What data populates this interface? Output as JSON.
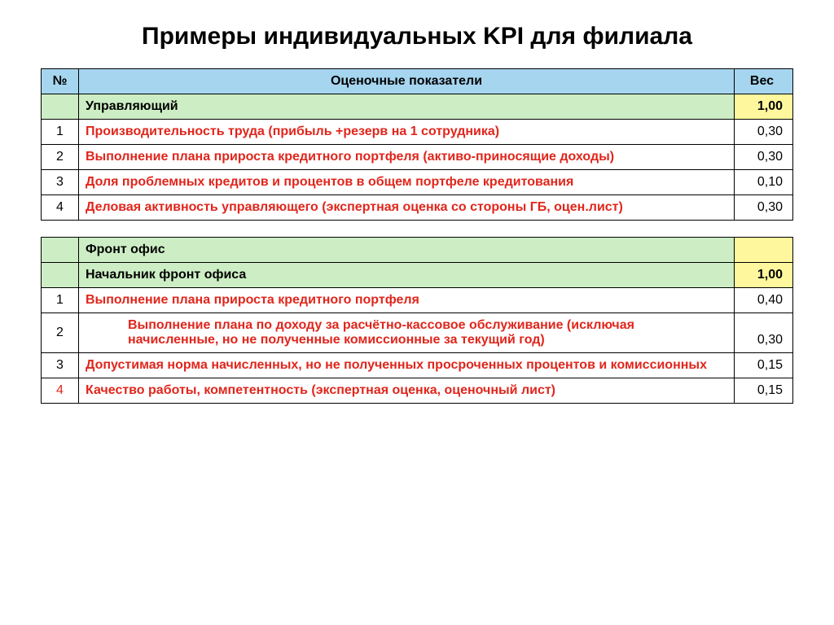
{
  "title": "Примеры индивидуальных KPI для филиала",
  "headers": {
    "num": "№",
    "indicators": "Оценочные показатели",
    "weight": "Вес"
  },
  "section1": {
    "label": "Управляющий",
    "total": "1,00",
    "rows": [
      {
        "n": "1",
        "text": "Производительность труда (прибыль +резерв на 1 сотрудника)",
        "w": "0,30"
      },
      {
        "n": "2",
        "text": "Выполнение плана прироста кредитного портфеля (активо-приносящие доходы)",
        "w": "0,30"
      },
      {
        "n": "3",
        "text": "Доля проблемных кредитов и  процентов в общем портфеле кредитования",
        "w": "0,10"
      },
      {
        "n": "4",
        "text": "Деловая активность управляющего (экспертная оценка со стороны ГБ, оцен.лист)",
        "w": "0,30"
      }
    ]
  },
  "section2": {
    "group": "Фронт офис",
    "label": "Начальник фронт офиса",
    "total": "1,00",
    "rows": [
      {
        "n": "1",
        "text": "Выполнение плана прироста кредитного портфеля",
        "w": "0,40"
      },
      {
        "n": "2",
        "text": "Выполнение плана по доходу за расчётно-кассовое обслуживание (исключая начисленные, но не полученные комиссионные за текущий год)",
        "w": "0,30",
        "indent": true
      },
      {
        "n": "3",
        "text": "Допустимая норма начисленных, но не полученных просроченных процентов и комиссионных",
        "w": "0,15"
      },
      {
        "n": "4",
        "text": "Качество работы, компетентность  (экспертная оценка, оценочный лист)",
        "w": "0,15",
        "numRed": true
      }
    ]
  },
  "style": {
    "title_fontsize": "30px",
    "header_fontsize": "16px",
    "row_fontsize": "16px",
    "sub_fontsize": "16px",
    "color_red": "#e0261c",
    "color_blue_bg": "#a6d5f0",
    "color_green_bg": "#cdeec5",
    "color_yellow_bg": "#fef79d",
    "background": "#ffffff"
  }
}
